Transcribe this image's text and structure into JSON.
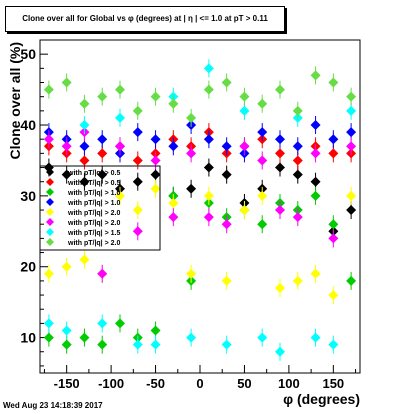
{
  "title": "Clone  over all for Global vs φ (degrees) at | η | <= 1.0 at pT > 0.11",
  "footer": "Wed Aug 23 14:18:39 2017",
  "chart_data": {
    "type": "scatter",
    "title": "Clone  over all for Global vs φ (degrees) at | η | <= 1.0 at pT > 0.11",
    "xlabel": "φ (degrees)",
    "ylabel": "Clone  over all (%)",
    "xlim": [
      -180,
      180
    ],
    "ylim": [
      5,
      52
    ],
    "xticks": [
      -150,
      -100,
      -50,
      0,
      50,
      100,
      150
    ],
    "yticks": [
      10,
      20,
      30,
      40,
      50
    ],
    "grid": false,
    "legend_position": "left",
    "series": [
      {
        "name": "with pT/|q| > 0.5",
        "color": "#000000",
        "marker": "diamond",
        "x": [
          -170,
          -150,
          -130,
          -110,
          -90,
          -70,
          -50,
          -30,
          -10,
          10,
          30,
          50,
          70,
          90,
          110,
          130,
          150,
          170
        ],
        "y": [
          34,
          33,
          32,
          33,
          31,
          32,
          33,
          30,
          31,
          34,
          33,
          29,
          31,
          34,
          33,
          32,
          25,
          28
        ]
      },
      {
        "name": "with pT/|q| > 0.5",
        "color": "#ff0000",
        "marker": "diamond",
        "x": [
          -170,
          -150,
          -130,
          -110,
          -90,
          -70,
          -50,
          -30,
          -10,
          10,
          30,
          50,
          70,
          90,
          110,
          130,
          150,
          170
        ],
        "y": [
          37,
          36,
          35,
          36,
          37,
          35,
          36,
          38,
          37,
          39,
          36,
          37,
          38,
          36,
          35,
          37,
          36,
          36
        ]
      },
      {
        "name": "with pT/|q| > 1.0",
        "color": "#00cc00",
        "marker": "diamond",
        "x": [
          -170,
          -150,
          -130,
          -110,
          -90,
          -70,
          -50,
          -30,
          -10,
          10,
          30,
          50,
          70,
          90,
          110,
          130,
          150,
          170
        ],
        "y": [
          10,
          9,
          10,
          9,
          12,
          10,
          11,
          30,
          18,
          29,
          27,
          28,
          26,
          29,
          28,
          30,
          26,
          18
        ]
      },
      {
        "name": "with pT/|q| > 1.0",
        "color": "#0000ff",
        "marker": "diamond",
        "x": [
          -170,
          -150,
          -130,
          -110,
          -90,
          -70,
          -50,
          -30,
          -10,
          10,
          30,
          50,
          70,
          90,
          110,
          130,
          150,
          170
        ],
        "y": [
          39,
          38,
          37,
          38,
          36,
          39,
          38,
          37,
          40,
          38,
          37,
          36,
          39,
          38,
          37,
          40,
          38,
          39
        ]
      },
      {
        "name": "with pT/|q| > 2.0",
        "color": "#ffff00",
        "marker": "diamond",
        "x": [
          -170,
          -150,
          -130,
          -110,
          -90,
          -70,
          -50,
          -30,
          -10,
          10,
          30,
          50,
          70,
          90,
          110,
          130,
          150,
          170
        ],
        "y": [
          19,
          20,
          21,
          19,
          30,
          28,
          31,
          29,
          19,
          30,
          18,
          28,
          30,
          17,
          18,
          19,
          16,
          30
        ]
      },
      {
        "name": "with pT/|q| > 2.0",
        "color": "#ff00ff",
        "marker": "diamond",
        "x": [
          -170,
          -150,
          -130,
          -110,
          -90,
          -70,
          -50,
          -30,
          -10,
          10,
          30,
          50,
          70,
          90,
          110,
          130,
          150,
          170
        ],
        "y": [
          38,
          37,
          39,
          19,
          37,
          25,
          35,
          27,
          36,
          27,
          26,
          37,
          35,
          28,
          27,
          36,
          24,
          37
        ]
      },
      {
        "name": "with pT/|q| > 1.5",
        "color": "#00ffff",
        "marker": "diamond",
        "x": [
          -170,
          -150,
          -130,
          -110,
          -90,
          -70,
          -50,
          -30,
          -10,
          10,
          30,
          50,
          70,
          90,
          110,
          130,
          150,
          170
        ],
        "y": [
          12,
          11,
          40,
          12,
          41,
          9,
          9,
          44,
          10,
          48,
          9,
          42,
          10,
          8,
          41,
          10,
          9,
          42
        ]
      },
      {
        "name": "with pT/|q| > 2.0",
        "color": "#66dd44",
        "marker": "diamond",
        "x": [
          -170,
          -150,
          -130,
          -110,
          -90,
          -70,
          -50,
          -30,
          -10,
          10,
          30,
          50,
          70,
          90,
          110,
          130,
          150,
          170
        ],
        "y": [
          45,
          46,
          43,
          44,
          45,
          42,
          44,
          43,
          41,
          45,
          46,
          44,
          43,
          45,
          42,
          47,
          46,
          44
        ]
      }
    ]
  }
}
